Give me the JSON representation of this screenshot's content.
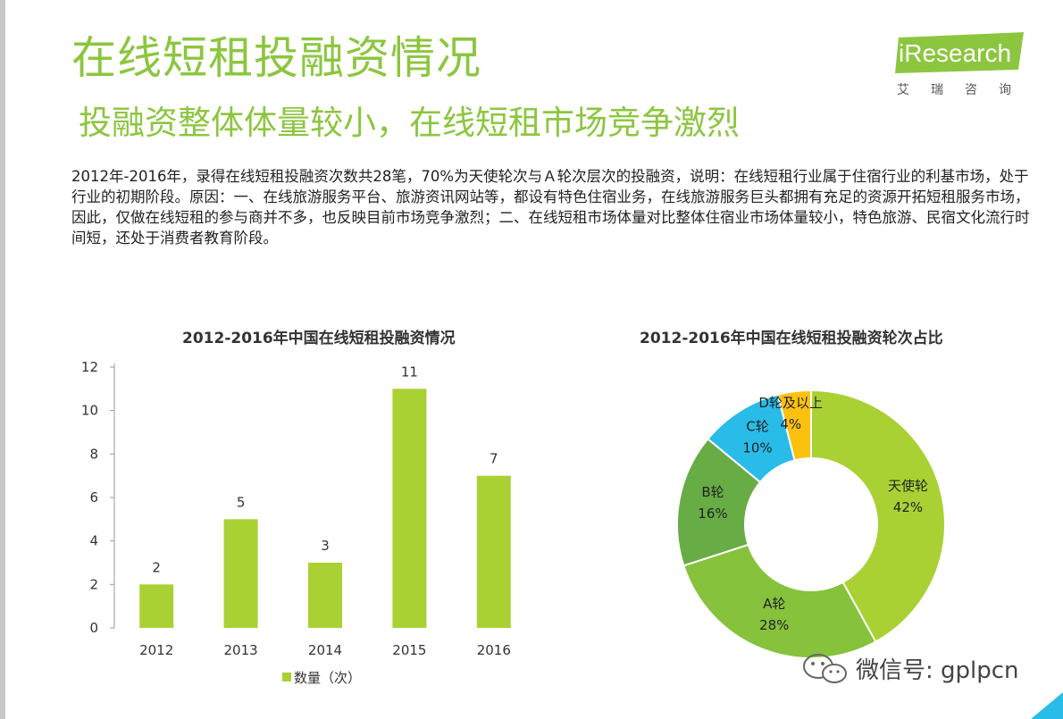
{
  "header": {
    "title": "在线短租投融资情况",
    "subtitle": "投融资整体体量较小，在线短租市场竞争激烈"
  },
  "logo": {
    "brand": "iResearch",
    "chinese": "艾瑞咨询",
    "color": "#8cc63f"
  },
  "description": "2012年-2016年，录得在线短租投融资次数共28笔，70%为天使轮次与Ａ轮次层次的投融资，说明：在线短租行业属于住宿行业的利基市场，处于行业的初期阶段。原因：一、在线旅游服务平台、旅游资讯网站等，都设有特色住宿业务，在线旅游服务巨头都拥有充足的资源开拓短租服务市场，因此，仅做在线短租的参与商并不多，也反映目前市场竞争激烈；二、在线短租市场体量对比整体住宿业市场体量较小，特色旅游、民宿文化流行时间短，还处于消费者教育阶段。",
  "chart_data": [
    {
      "type": "bar",
      "title": "2012-2016年中国在线短租投融资情况",
      "categories": [
        "2012",
        "2013",
        "2014",
        "2015",
        "2016"
      ],
      "series": [
        {
          "name": "数量（次）",
          "values": [
            2,
            5,
            3,
            11,
            7
          ],
          "color": "#a9d134"
        }
      ],
      "ylim": [
        0,
        12
      ],
      "yticks": [
        0,
        2,
        4,
        6,
        8,
        10,
        12
      ],
      "grid": false,
      "legend": "bottom",
      "data_labels": true
    },
    {
      "type": "pie",
      "subtype": "donut",
      "title": "2012-2016年中国在线短租投融资轮次占比",
      "slices": [
        {
          "label": "天使轮",
          "value": 42,
          "display": "42%",
          "color": "#a9d134"
        },
        {
          "label": "A轮",
          "value": 28,
          "display": "28%",
          "color": "#86c23c"
        },
        {
          "label": "B轮",
          "value": 16,
          "display": "16%",
          "color": "#67ac45"
        },
        {
          "label": "C轮",
          "value": 10,
          "display": "10%",
          "color": "#29bce8"
        },
        {
          "label": "D轮及以上",
          "value": 4,
          "display": "4%",
          "color": "#fcc10f"
        }
      ]
    }
  ],
  "watermark": {
    "text": "微信号: gplpcn",
    "icon": "wechat-icon"
  },
  "decor": {
    "title_color": "#8cc63f",
    "corner_color": "#29bce8"
  }
}
